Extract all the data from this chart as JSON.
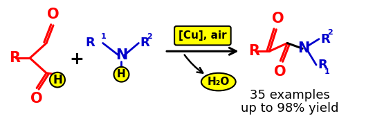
{
  "red": "#ff0000",
  "blue": "#0000cc",
  "black": "#000000",
  "yellow": "#ffff00",
  "text_35examples": "35 examples",
  "text_yield": "up to 98% yield",
  "label_cu_air": "[Cu], air",
  "label_h2o": "H₂O",
  "figsize": [
    5.42,
    1.84
  ],
  "dpi": 100
}
